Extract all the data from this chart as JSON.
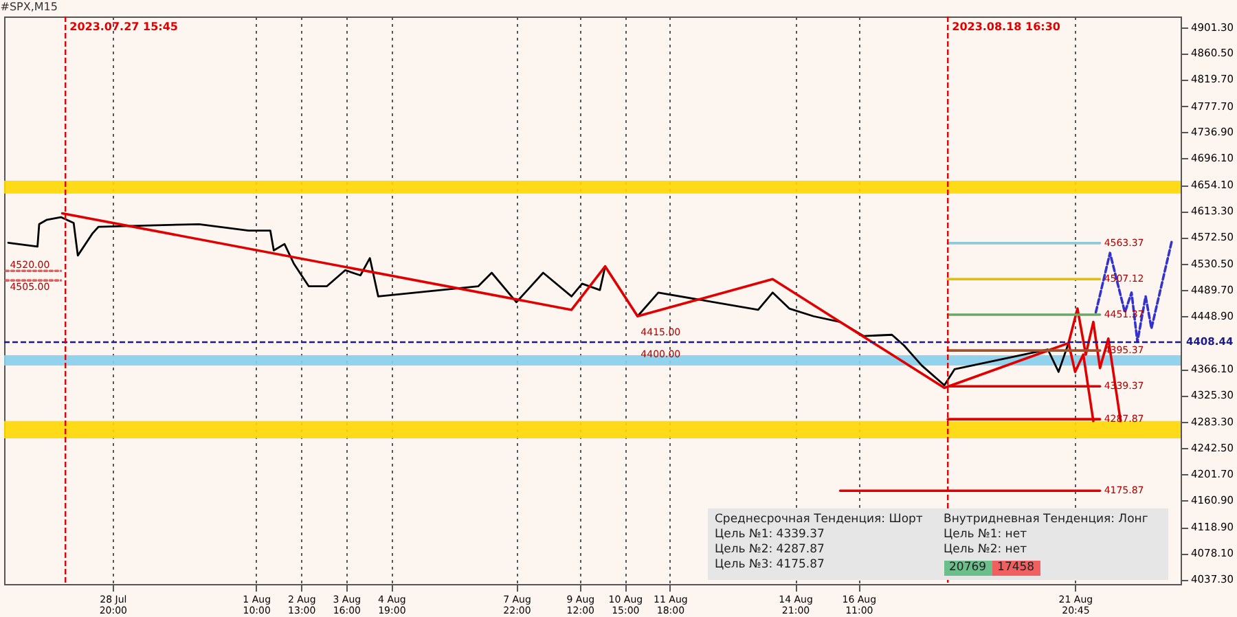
{
  "chart_data": {
    "type": "line",
    "title": "#SPX,M15",
    "xlim": [
      "2023-07-26T03:00",
      "2023-08-24T12:00"
    ],
    "ylim": [
      4030,
      4918
    ],
    "xticks": [
      {
        "value": "2023-07-28T20:00",
        "label": "28 Jul 20:00"
      },
      {
        "value": "2023-08-01T10:00",
        "label": "1 Aug 10:00"
      },
      {
        "value": "2023-08-02T13:00",
        "label": "2 Aug 13:00"
      },
      {
        "value": "2023-08-03T16:00",
        "label": "3 Aug 16:00"
      },
      {
        "value": "2023-08-04T19:00",
        "label": "4 Aug 19:00"
      },
      {
        "value": "2023-08-07T22:00",
        "label": "7 Aug 22:00"
      },
      {
        "value": "2023-08-09T12:00",
        "label": "9 Aug 12:00"
      },
      {
        "value": "2023-08-10T15:00",
        "label": "10 Aug 15:00"
      },
      {
        "value": "2023-08-11T18:00",
        "label": "11 Aug 18:00"
      },
      {
        "value": "2023-08-14T21:00",
        "label": "14 Aug 21:00"
      },
      {
        "value": "2023-08-16T11:00",
        "label": "16 Aug 11:00"
      },
      {
        "value": "2023-08-21T20:45",
        "label": "21 Aug 20:45"
      }
    ],
    "yticks": [
      {
        "value": 4037.3,
        "label": "4037.30"
      },
      {
        "value": 4078.1,
        "label": "4078.10"
      },
      {
        "value": 4118.9,
        "label": "4118.90"
      },
      {
        "value": 4160.9,
        "label": "4160.90"
      },
      {
        "value": 4201.7,
        "label": "4201.70"
      },
      {
        "value": 4242.5,
        "label": "4242.50"
      },
      {
        "value": 4283.3,
        "label": "4283.30"
      },
      {
        "value": 4325.3,
        "label": "4325.30"
      },
      {
        "value": 4366.1,
        "label": "4366.10"
      },
      {
        "value": 4448.9,
        "label": "4448.90"
      },
      {
        "value": 4489.7,
        "label": "4489.70"
      },
      {
        "value": 4530.5,
        "label": "4530.50"
      },
      {
        "value": 4572.5,
        "label": "4572.50"
      },
      {
        "value": 4613.3,
        "label": "4613.30"
      },
      {
        "value": 4654.1,
        "label": "4654.10"
      },
      {
        "value": 4696.1,
        "label": "4696.10"
      },
      {
        "value": 4736.9,
        "label": "4736.90"
      },
      {
        "value": 4777.7,
        "label": "4777.70"
      },
      {
        "value": 4819.7,
        "label": "4819.70"
      },
      {
        "value": 4860.5,
        "label": "4860.50"
      },
      {
        "value": 4901.3,
        "label": "4901.30"
      }
    ],
    "grid": "x",
    "series": [
      {
        "color": "#000000",
        "x": [
          "2023-07-26T05:30",
          "2023-07-26T23:00",
          "2023-07-27T00:00",
          "2023-07-27T04:40",
          "2023-07-27T13:00",
          "2023-07-27T20:40",
          "2023-07-27T23:10",
          "2023-07-28T08:05",
          "2023-07-28T11:35",
          "2023-07-30T23:50",
          "2023-08-01T05:30",
          "2023-08-01T18:30",
          "2023-08-01T20:35",
          "2023-08-02T03:00",
          "2023-08-02T08:40",
          "2023-08-02T17:30",
          "2023-08-03T04:25",
          "2023-08-03T15:25",
          "2023-08-04T00:30",
          "2023-08-04T06:10",
          "2023-08-04T11:10",
          "2023-08-06T23:10",
          "2023-08-07T07:10",
          "2023-08-07T22:00",
          "2023-08-08T14:00",
          "2023-08-09T07:00",
          "2023-08-09T13:20",
          "2023-08-10T00:00",
          "2023-08-10T03:10",
          "2023-08-10T22:35",
          "2023-08-11T11:00",
          "2023-08-13T22:50",
          "2023-08-14T07:30",
          "2023-08-14T17:30",
          "2023-08-15T08:00",
          "2023-08-16T00:00",
          "2023-08-16T14:10",
          "2023-08-17T07:00",
          "2023-08-17T14:20",
          "2023-08-18T00:50",
          "2023-08-18T14:25",
          "2023-08-18T20:30",
          "2023-08-21T04:25",
          "2023-08-21T10:50",
          "2023-08-21T16:50"
        ],
        "values": [
          4564,
          4558,
          4593,
          4600,
          4604,
          4595,
          4544,
          4579,
          4589,
          4593,
          4583,
          4583,
          4552,
          4562,
          4531,
          4496,
          4496,
          4521,
          4513,
          4540,
          4480,
          4496,
          4517,
          4471,
          4517,
          4480,
          4500,
          4490,
          4527,
          4449,
          4486,
          4459,
          4486,
          4461,
          4449,
          4440,
          4418,
          4420,
          4403,
          4372,
          4341,
          4366,
          4397,
          4362,
          4407
        ]
      },
      {
        "color": "#e00000",
        "x": [
          "2023-07-27T13:50",
          "2023-08-09T07:00",
          "2023-08-10T03:10",
          "2023-08-10T22:35",
          "2023-08-14T07:30",
          "2023-08-18T14:25",
          "2023-08-21T16:50"
        ],
        "values": [
          4610,
          4459,
          4527,
          4449,
          4507,
          4337,
          4407
        ]
      },
      {
        "color": "#e00000",
        "x": [
          "2023-08-21T16:50",
          "2023-08-21T22:10",
          "2023-08-22T03:10",
          "2023-08-22T07:40",
          "2023-08-22T11:40",
          "2023-08-22T16:40",
          "2023-08-23T00:00"
        ],
        "values": [
          4407,
          4461,
          4389,
          4440,
          4368,
          4414,
          4285
        ]
      },
      {
        "color": "#e00000",
        "x": [
          "2023-08-21T16:50",
          "2023-08-21T20:45",
          "2023-08-22T01:40",
          "2023-08-22T07:40"
        ],
        "values": [
          4407,
          4362,
          4389,
          4285
        ]
      },
      {
        "color": "#3333cc",
        "line_style": "dashed",
        "x": [
          "2023-08-22T09:10",
          "2023-08-22T17:40",
          "2023-08-23T02:35",
          "2023-08-23T06:35",
          "2023-08-23T10:05",
          "2023-08-23T15:00",
          "2023-08-23T18:30",
          "2023-08-24T06:55"
        ],
        "values": [
          4455,
          4548,
          4455,
          4486,
          4409,
          4480,
          4430,
          4569
        ]
      },
      {
        "color": "#8fc9d9",
        "x": [
          "2023-08-18T16:30",
          "2023-08-22T11:40"
        ],
        "values": [
          4563.37,
          4563.37
        ]
      },
      {
        "color": "#e0c000",
        "x": [
          "2023-08-18T16:30",
          "2023-08-22T11:40"
        ],
        "values": [
          4507.12,
          4507.12
        ]
      },
      {
        "color": "#6aa86a",
        "x": [
          "2023-08-18T16:30",
          "2023-08-22T11:40"
        ],
        "values": [
          4451.37,
          4451.37
        ]
      },
      {
        "color": "#a0522d",
        "x": [
          "2023-08-18T16:30",
          "2023-08-22T11:40"
        ],
        "values": [
          4395.37,
          4395.37
        ]
      },
      {
        "color": "#e00000",
        "x": [
          "2023-08-18T16:30",
          "2023-08-22T11:40"
        ],
        "values": [
          4339.37,
          4339.37
        ]
      },
      {
        "color": "#e00000",
        "x": [
          "2023-08-18T16:30",
          "2023-08-22T11:40"
        ],
        "values": [
          4287.87,
          4287.87
        ]
      },
      {
        "color": "#e00000",
        "x": [
          "2023-08-16T00:00",
          "2023-08-22T11:40"
        ],
        "values": [
          4175.87,
          4175.87
        ]
      },
      {
        "color": "#e06060",
        "line_style": "dotted",
        "x": [
          "2023-07-26T04:00",
          "2023-07-27T13:00"
        ],
        "values": [
          4520.0,
          4520.0
        ]
      },
      {
        "color": "#e06060",
        "line_style": "dotted",
        "x": [
          "2023-07-26T04:00",
          "2023-07-27T13:00"
        ],
        "values": [
          4505.0,
          4505.0
        ]
      }
    ],
    "ref_lines": [
      {
        "axis": "y",
        "value": 4408.44,
        "label": "4408.44",
        "color": "#1a1a8c",
        "line_style": "dashed"
      },
      {
        "axis": "x",
        "value": "2023-07-27T15:45",
        "label": "2023.07.27 15:45",
        "color": "#e00000",
        "line_style": "dashed"
      },
      {
        "axis": "x",
        "value": "2023-08-18T16:30",
        "label": "2023.08.18 16:30",
        "color": "#e00000",
        "line_style": "dashed"
      }
    ],
    "bands": [
      {
        "axis": "y",
        "from": 4258,
        "to": 4285,
        "color": "#ffd700"
      },
      {
        "axis": "y",
        "from": 4372,
        "to": 4388,
        "color": "#87ceeb"
      },
      {
        "axis": "y",
        "from": 4641,
        "to": 4661,
        "color": "#ffd700"
      }
    ],
    "annotations": [
      {
        "text": "4520.00",
        "x": "2023-07-26T04:00",
        "y": 4520.0
      },
      {
        "text": "4505.00",
        "x": "2023-07-26T04:00",
        "y": 4505.0
      },
      {
        "text": "4415.00",
        "x": "2023-08-10T22:00",
        "y": 4415.0
      },
      {
        "text": "4400.00",
        "x": "2023-08-10T22:00",
        "y": 4400.0
      },
      {
        "text": "4563.37",
        "x": "2023-08-22T11:40",
        "y": 4563.37
      },
      {
        "text": "4507.12",
        "x": "2023-08-22T11:40",
        "y": 4507.12
      },
      {
        "text": "4451.37",
        "x": "2023-08-22T11:40",
        "y": 4451.37
      },
      {
        "text": "4395.37",
        "x": "2023-08-22T11:40",
        "y": 4395.37
      },
      {
        "text": "4339.37",
        "x": "2023-08-22T11:40",
        "y": 4339.37
      },
      {
        "text": "4287.87",
        "x": "2023-08-22T11:40",
        "y": 4287.87
      },
      {
        "text": "4175.87",
        "x": "2023-08-22T11:40",
        "y": 4175.87
      },
      "Среднесрочная Тенденция: Шорт",
      "Цель №1: 4339.37",
      "Цель №2: 4287.87",
      "Цель №3: 4175.87",
      "Внутридневная Тенденция: Лонг",
      "Цель №1: нет",
      "Цель №2: нет",
      "20769",
      "17458"
    ]
  }
}
